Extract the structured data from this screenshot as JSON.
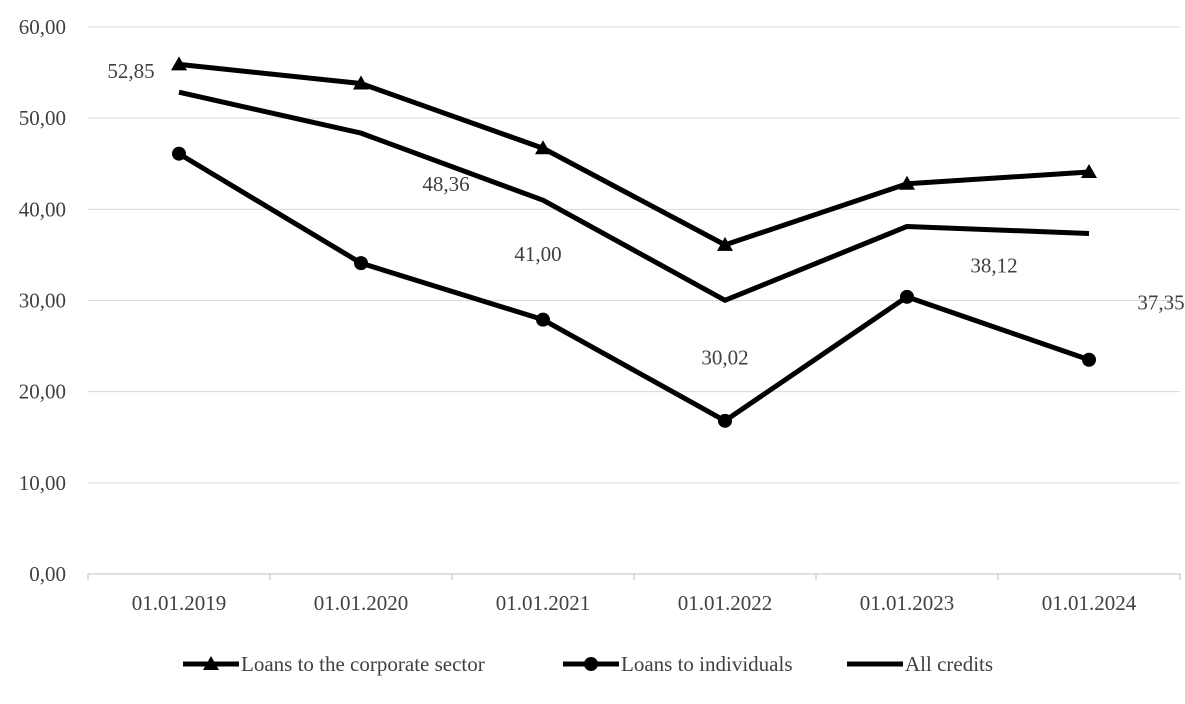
{
  "chart_data": {
    "type": "line",
    "title": "",
    "xlabel": "",
    "ylabel": "",
    "categories": [
      "01.01.2019",
      "01.01.2020",
      "01.01.2021",
      "01.01.2022",
      "01.01.2023",
      "01.01.2024"
    ],
    "ylim": [
      0,
      60
    ],
    "y_ticks": [
      "0,00",
      "10,00",
      "20,00",
      "30,00",
      "40,00",
      "50,00",
      "60,00"
    ],
    "grid": true,
    "legend_position": "bottom",
    "series": [
      {
        "name": "Loans to the corporate sector",
        "marker": "triangle",
        "color": "#000000",
        "values": [
          55.9,
          53.8,
          46.7,
          36.1,
          42.8,
          44.1
        ]
      },
      {
        "name": "Loans to individuals",
        "marker": "circle",
        "color": "#000000",
        "values": [
          46.1,
          34.1,
          27.9,
          16.8,
          30.4,
          23.5
        ]
      },
      {
        "name": "All credits",
        "marker": "none",
        "color": "#000000",
        "values": [
          52.85,
          48.36,
          41.0,
          30.02,
          38.12,
          37.35
        ],
        "data_labels": [
          "52,85",
          "48,36",
          "41,00",
          "30,02",
          "38,12",
          "37,35"
        ]
      }
    ]
  }
}
